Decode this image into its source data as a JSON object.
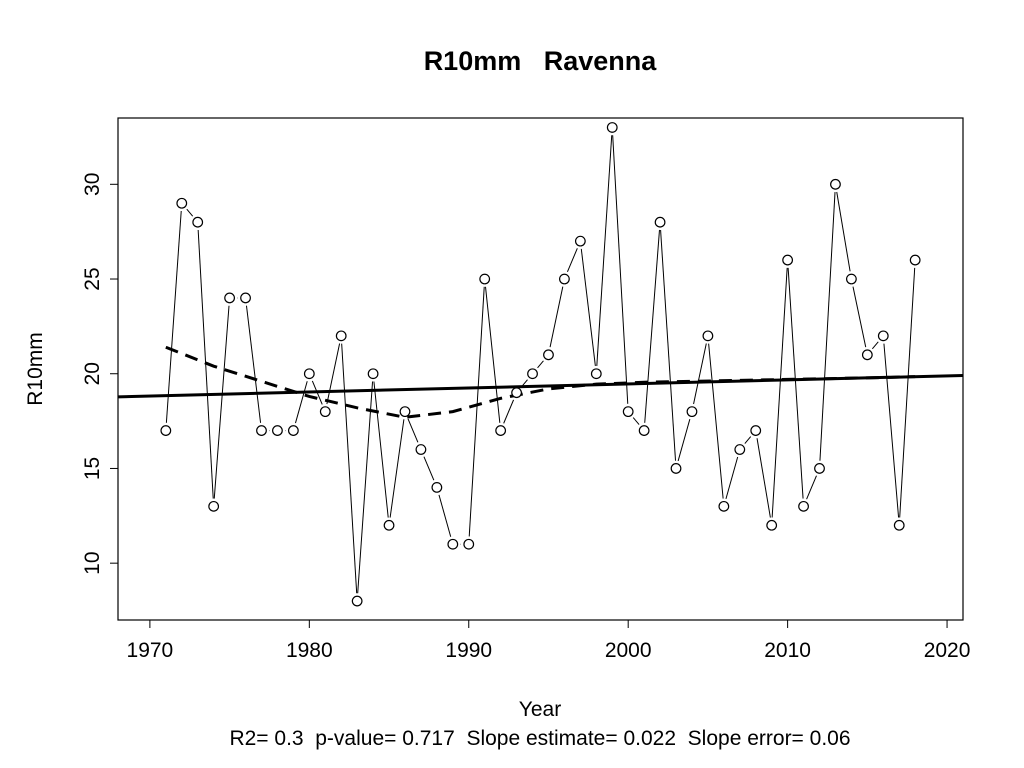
{
  "chart_data": {
    "type": "line",
    "title": "R10mm   Ravenna",
    "xlabel": "Year",
    "ylabel": "R10mm",
    "stats_text": "R2= 0.3  p-value= 0.717  Slope estimate= 0.022  Slope error= 0.06",
    "xlim": [
      1968,
      2021
    ],
    "ylim": [
      7,
      33.5
    ],
    "x_ticks": [
      1970,
      1980,
      1990,
      2000,
      2010,
      2020
    ],
    "y_ticks": [
      10,
      15,
      20,
      25,
      30
    ],
    "grid": false,
    "series": [
      {
        "style": "points-and-lines",
        "x": [
          1971,
          1972,
          1973,
          1974,
          1975,
          1976,
          1977,
          1978,
          1979,
          1980,
          1981,
          1982,
          1983,
          1984,
          1985,
          1986,
          1987,
          1988,
          1989,
          1990,
          1991,
          1992,
          1993,
          1994,
          1995,
          1996,
          1997,
          1998,
          1999,
          2000,
          2001,
          2002,
          2003,
          2004,
          2005,
          2006,
          2007,
          2008,
          2009,
          2010,
          2011,
          2012,
          2013,
          2014,
          2015,
          2016,
          2017,
          2018
        ],
        "y": [
          17,
          29,
          28,
          13,
          24,
          24,
          17,
          17,
          17,
          20,
          18,
          22,
          8,
          20,
          12,
          18,
          16,
          14,
          11,
          11,
          25,
          17,
          19,
          20,
          21,
          25,
          27,
          20,
          33,
          18,
          17,
          28,
          15,
          18,
          22,
          13,
          16,
          17,
          12,
          26,
          13,
          15,
          30,
          25,
          21,
          22,
          12,
          26
        ]
      },
      {
        "style": "solid-thick",
        "x": [
          1968,
          2021
        ],
        "y": [
          18.78,
          19.91
        ]
      },
      {
        "style": "dashed-thick",
        "x": [
          1971,
          1974,
          1977,
          1980,
          1983,
          1986,
          1989,
          1992,
          1995,
          1998,
          2001,
          2004,
          2007,
          2010,
          2013,
          2016,
          2018
        ],
        "y": [
          21.4,
          20.4,
          19.6,
          18.8,
          18.2,
          17.7,
          18.0,
          18.7,
          19.2,
          19.45,
          19.55,
          19.6,
          19.65,
          19.7,
          19.75,
          19.8,
          19.85
        ]
      }
    ]
  }
}
